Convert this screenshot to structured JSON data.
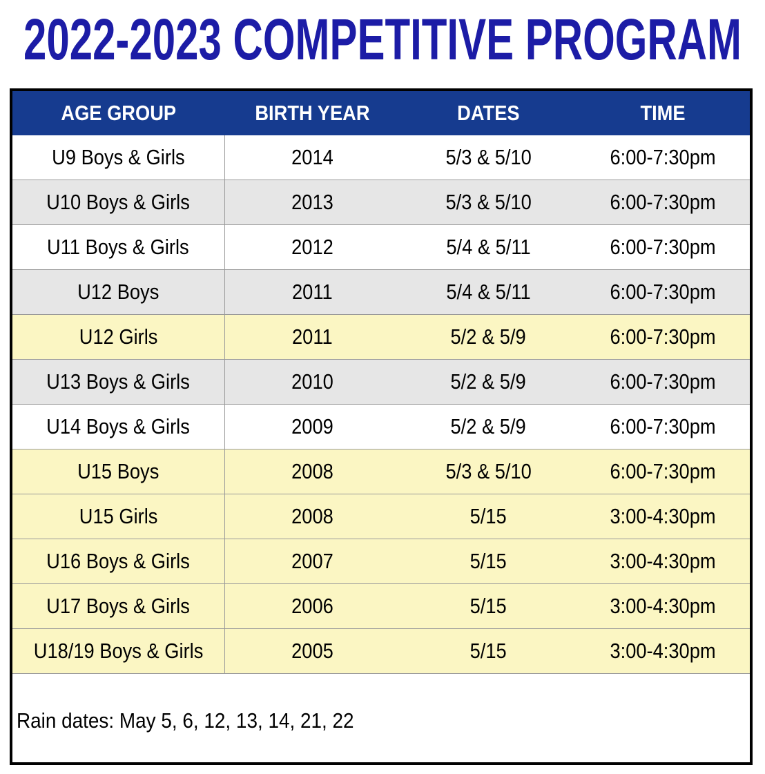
{
  "header": {
    "title": "2022-2023 COMPETITIVE PROGRAM"
  },
  "table": {
    "columns": [
      "AGE GROUP",
      "BIRTH YEAR",
      "DATES",
      "TIME"
    ],
    "header_color": "#163b8f",
    "rows": [
      [
        "U9 Boys & Girls",
        "2014",
        "5/3 & 5/10",
        "6:00-7:30pm"
      ],
      [
        "U10 Boys & Girls",
        "2013",
        "5/3 & 5/10",
        "6:00-7:30pm"
      ],
      [
        "U11 Boys & Girls",
        "2012",
        "5/4 & 5/11",
        "6:00-7:30pm"
      ],
      [
        "U12 Boys",
        "2011",
        "5/4 & 5/11",
        "6:00-7:30pm"
      ],
      [
        "U12 Girls",
        "2011",
        "5/2 & 5/9",
        "6:00-7:30pm"
      ],
      [
        "U13 Boys & Girls",
        "2010",
        "5/2 & 5/9",
        "6:00-7:30pm"
      ],
      [
        "U14 Boys & Girls",
        "2009",
        "5/2 & 5/9",
        "6:00-7:30pm"
      ],
      [
        "U15 Boys",
        "2008",
        "5/3 & 5/10",
        "6:00-7:30pm"
      ],
      [
        "U15 Girls",
        "2008",
        "5/15",
        "3:00-4:30pm"
      ],
      [
        "U16 Boys & Girls",
        "2007",
        "5/15",
        "3:00-4:30pm"
      ],
      [
        "U17 Boys & Girls",
        "2006",
        "5/15",
        "3:00-4:30pm"
      ],
      [
        "U18/19 Boys & Girls",
        "2005",
        "5/15",
        "3:00-4:30pm"
      ]
    ],
    "row_colors": [
      "#ffffff",
      "#e6e6e6",
      "#ffffff",
      "#e6e6e6",
      "#fbf6c3",
      "#e6e6e6",
      "#ffffff",
      "#fbf6c3",
      "#fbf6c3",
      "#fbf6c3",
      "#fbf6c3",
      "#fbf6c3"
    ]
  },
  "footer": {
    "note": "Rain dates: May 5, 6, 12, 13, 14, 21, 22"
  }
}
